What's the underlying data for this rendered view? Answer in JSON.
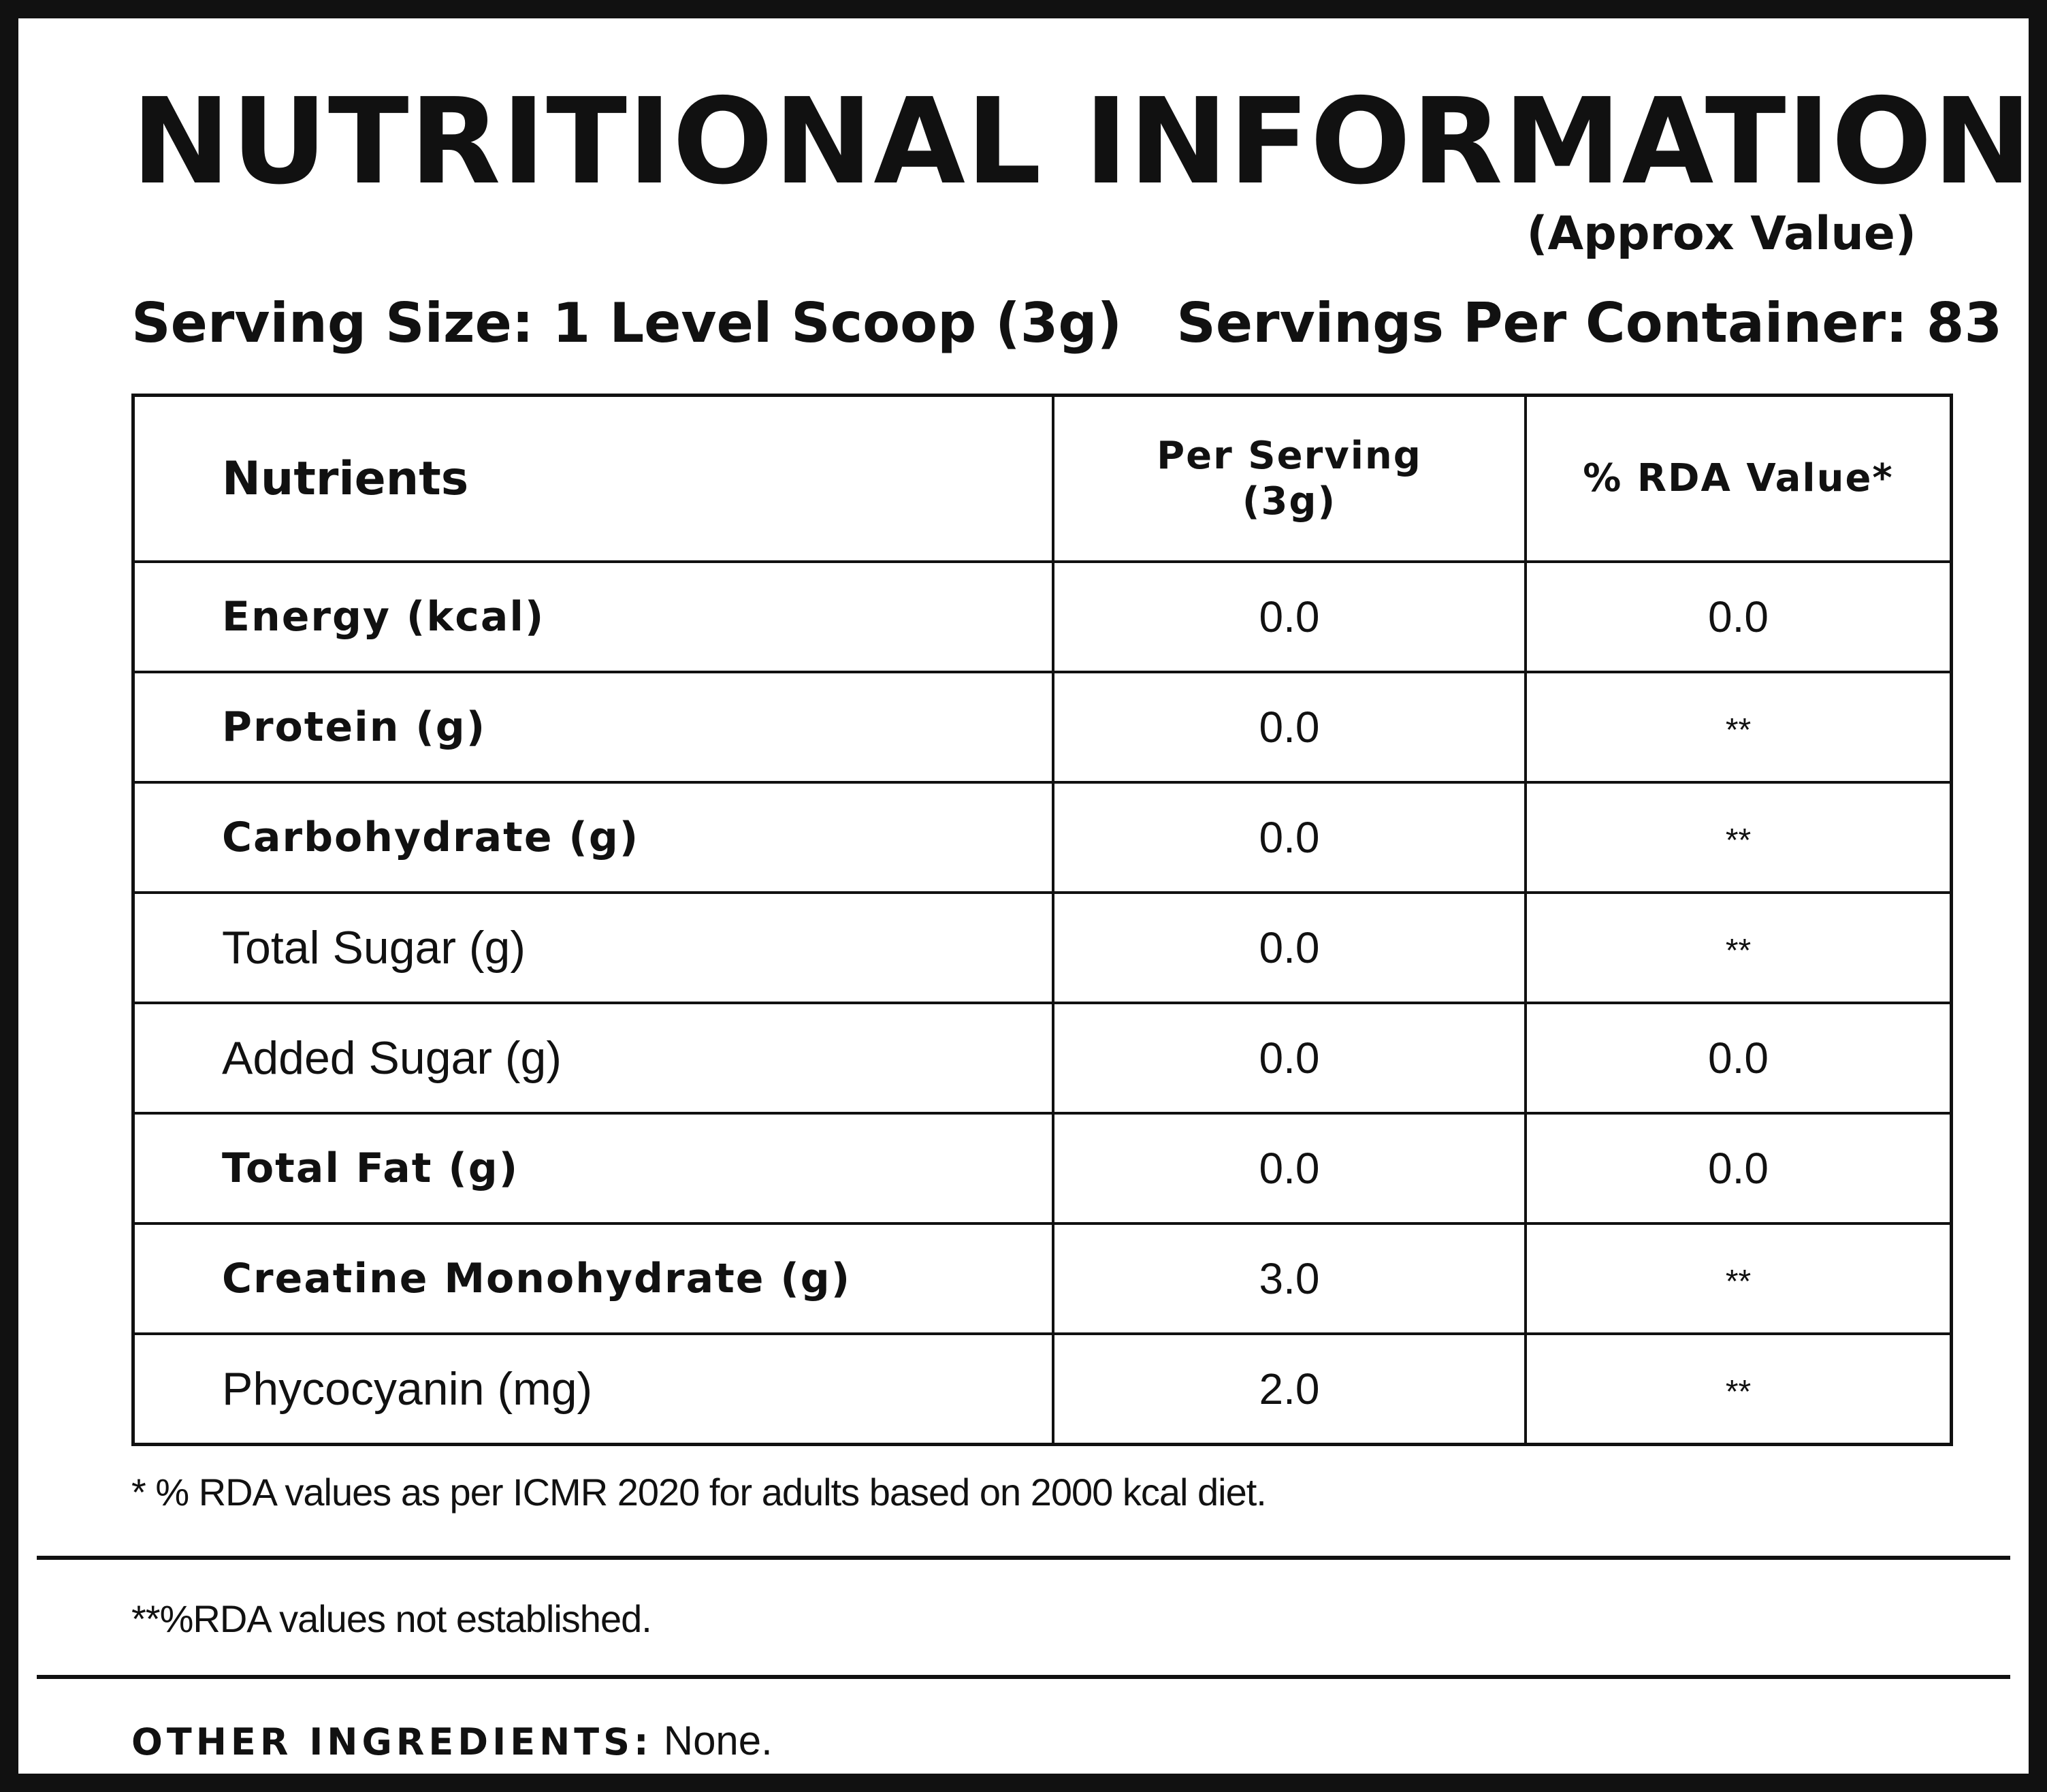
{
  "title": "NUTRITIONAL INFORMATION",
  "subtitle": "(Approx Value)",
  "serving_size": "Serving Size: 1 Level Scoop (3g)",
  "servings_per_container": "Servings Per Container: 83",
  "table": {
    "headers": {
      "nutrients": "Nutrients",
      "per_serving_line1": "Per Serving",
      "per_serving_line2": "(3g)",
      "rda": "% RDA Value*"
    },
    "rows": [
      {
        "name": "Energy (kcal)",
        "per_serving": "0.0",
        "rda": "0.0",
        "bold": true
      },
      {
        "name": "Protein (g)",
        "per_serving": "0.0",
        "rda": "**",
        "bold": true
      },
      {
        "name": "Carbohydrate (g)",
        "per_serving": "0.0",
        "rda": "**",
        "bold": true
      },
      {
        "name": "Total Sugar (g)",
        "per_serving": "0.0",
        "rda": "**",
        "bold": false
      },
      {
        "name": "Added Sugar (g)",
        "per_serving": "0.0",
        "rda": "0.0",
        "bold": false
      },
      {
        "name": "Total Fat (g)",
        "per_serving": "0.0",
        "rda": "0.0",
        "bold": true
      },
      {
        "name": "Creatine Monohydrate (g)",
        "per_serving": "3.0",
        "rda": "**",
        "bold": true
      },
      {
        "name": "Phycocyanin (mg)",
        "per_serving": "2.0",
        "rda": "**",
        "bold": false
      }
    ]
  },
  "footnote_rda": "* % RDA values as per ICMR 2020 for adults based on 2000 kcal diet.",
  "footnote_not_established": "**%RDA values not established.",
  "other_ingredients": {
    "label": "OTHER INGREDIENTS:",
    "value": "None."
  }
}
